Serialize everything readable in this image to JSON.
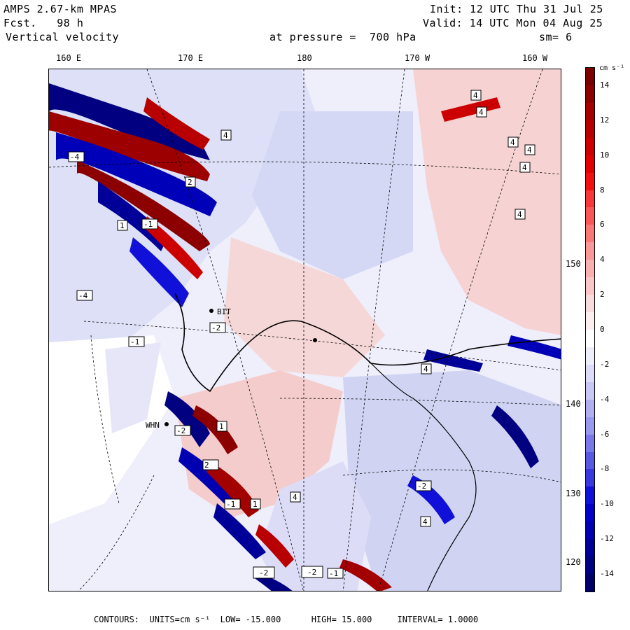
{
  "header": {
    "model": "AMPS 2.67-km MPAS",
    "fcst_label": "Fcst.",
    "fcst_value": "98 h",
    "variable": "Vertical velocity",
    "init": "Init: 12 UTC Thu 31 Jul 25",
    "valid": "Valid: 14 UTC Mon 04 Aug 25",
    "pressure_label": "at pressure =",
    "pressure_value": "700 hPa",
    "smoothing": "sm= 6"
  },
  "map": {
    "longitude_labels": [
      "160 E",
      "170 E",
      "180",
      "170 W",
      "160 W"
    ],
    "latitude_labels": [
      "150 W",
      "140 W",
      "130 W",
      "120 W"
    ],
    "station_labels": [
      "BIT",
      "WHN"
    ],
    "extremum_labels": [
      "4",
      "4",
      "4",
      "4",
      "4",
      "4",
      "2",
      "1",
      "-1",
      "4",
      "-4",
      "-4",
      "-1",
      "-2",
      "4",
      "1",
      "2",
      "-2",
      "-1",
      "1",
      "-2",
      "-2",
      "4",
      "-1",
      "4",
      "-2"
    ],
    "colors": {
      "background_positive": "#f7d6d6",
      "background_negative": "#d6dcf5",
      "graticule": "#000000",
      "land_outline": "#000000"
    }
  },
  "colorbar": {
    "units": "cm s⁻¹",
    "tick_labels": [
      "14",
      "12",
      "10",
      "8",
      "6",
      "4",
      "2",
      "0",
      "-2",
      "-4",
      "-6",
      "-8",
      "-10",
      "-12",
      "-14"
    ],
    "levels": [
      15,
      14,
      13,
      12,
      11,
      10,
      9,
      8,
      7,
      6,
      5,
      4,
      3,
      2,
      1,
      0,
      -1,
      -2,
      -3,
      -4,
      -5,
      -6,
      -7,
      -8,
      -9,
      -10,
      -11,
      -12,
      -13,
      -14,
      -15
    ],
    "colors": [
      "#7a0000",
      "#8c0000",
      "#a30000",
      "#b80000",
      "#cc0000",
      "#e00000",
      "#f01010",
      "#f83838",
      "#f85858",
      "#f87878",
      "#f89898",
      "#f8b0b0",
      "#f8c8c8",
      "#f8dcdc",
      "#fbeeee",
      "#ffffff",
      "#eeeefb",
      "#dcdcf8",
      "#c8c8f4",
      "#b0b0f0",
      "#9898ec",
      "#7878e8",
      "#5858e0",
      "#3838dc",
      "#1010d8",
      "#0000c8",
      "#0000b0",
      "#000098",
      "#000080",
      "#000068"
    ]
  },
  "footer": {
    "contours_label": "CONTOURS:",
    "units": "UNITS=cm s⁻¹",
    "low": "LOW= -15.000",
    "high": "HIGH= 15.000",
    "interval": "INTERVAL= 1.0000"
  }
}
